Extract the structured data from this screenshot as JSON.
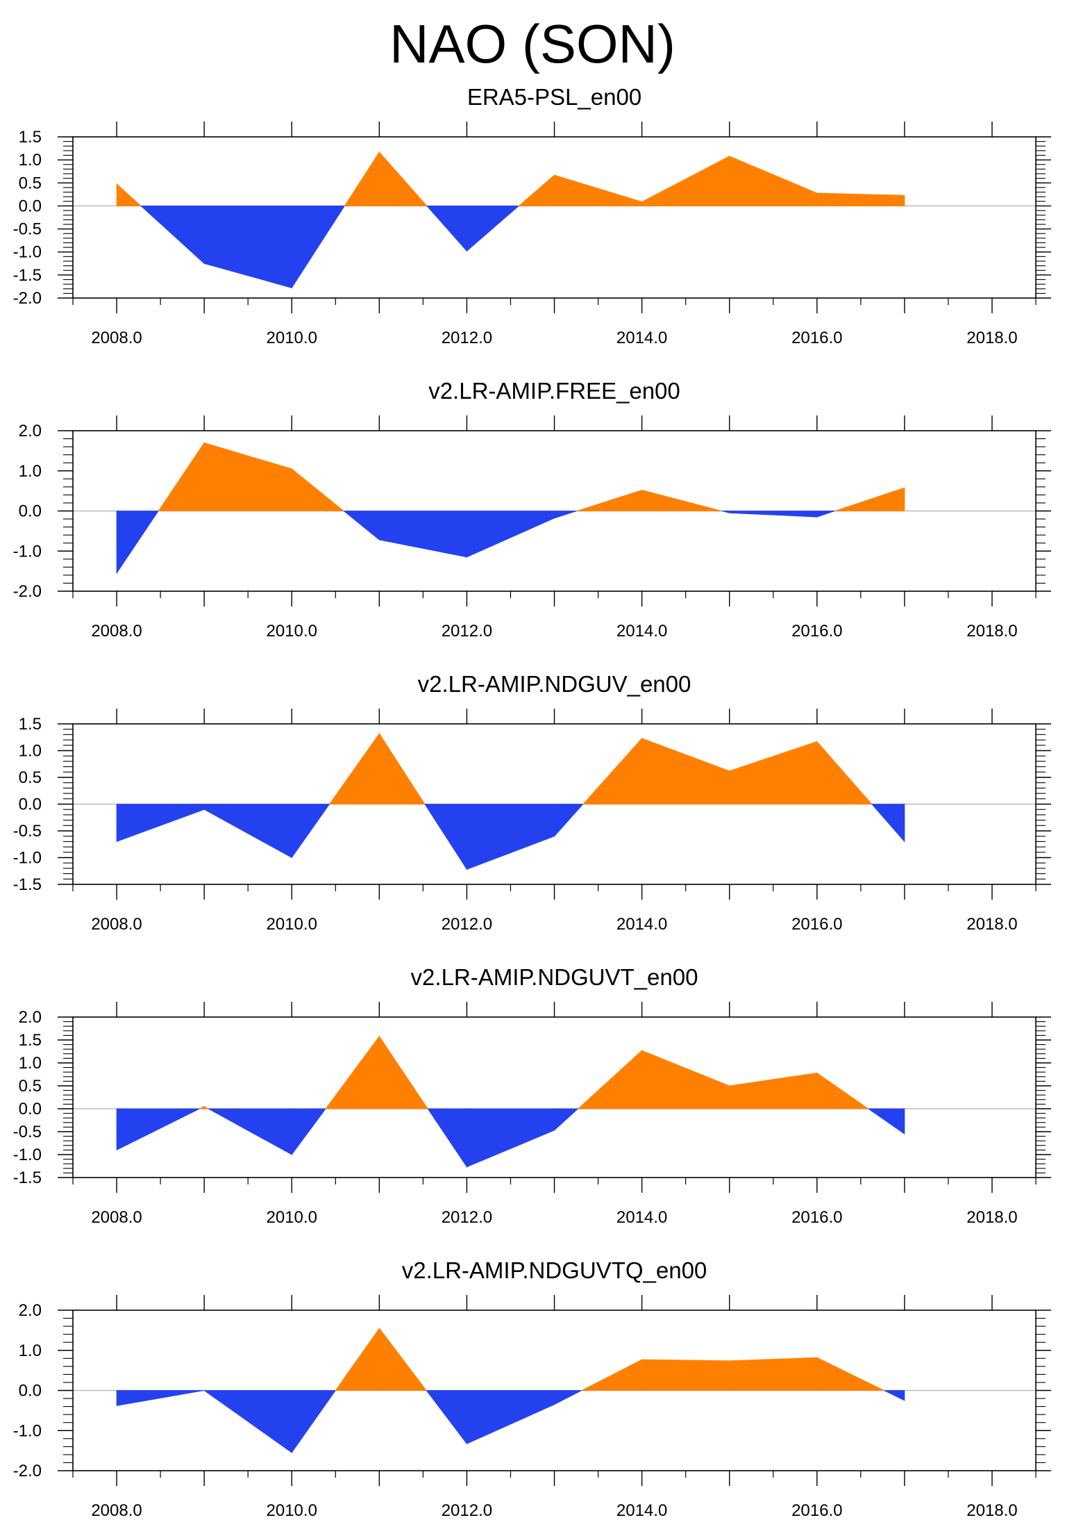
{
  "figure": {
    "title": "NAO (SON)"
  },
  "colors": {
    "positive": "#FF8000",
    "negative": "#2441F0",
    "axis": "#000000",
    "zero_line": "#BBBBBB"
  },
  "chart_data": [
    {
      "type": "area",
      "title": "ERA5-PSL_en00",
      "x": [
        2008,
        2009,
        2010,
        2011,
        2012,
        2013,
        2014,
        2015,
        2016,
        2017
      ],
      "values": [
        0.48,
        -1.25,
        -1.78,
        1.17,
        -0.98,
        0.67,
        0.09,
        1.08,
        0.28,
        0.23
      ],
      "xlim": [
        2007.5,
        2018.5
      ],
      "ylim": [
        -2.0,
        1.5
      ],
      "x_ticks": [
        2008,
        2010,
        2012,
        2014,
        2016,
        2018
      ],
      "x_tick_labels": [
        "2008.0",
        "2010.0",
        "2012.0",
        "2014.0",
        "2016.0",
        "2018.0"
      ],
      "y_ticks": [
        -2.0,
        -1.5,
        -1.0,
        -0.5,
        0.0,
        0.5,
        1.0,
        1.5
      ],
      "y_tick_labels": [
        "-2.0",
        "-1.5",
        "-1.0",
        "-0.5",
        "0.0",
        "0.5",
        "1.0",
        "1.5"
      ],
      "y_minor_step": 0.1
    },
    {
      "type": "area",
      "title": "v2.LR-AMIP.FREE_en00",
      "x": [
        2008,
        2009,
        2010,
        2011,
        2012,
        2013,
        2014,
        2015,
        2016,
        2017
      ],
      "values": [
        -1.55,
        1.7,
        1.05,
        -0.72,
        -1.15,
        -0.18,
        0.52,
        -0.05,
        -0.15,
        0.58
      ],
      "xlim": [
        2007.5,
        2018.5
      ],
      "ylim": [
        -2.0,
        2.0
      ],
      "x_ticks": [
        2008,
        2010,
        2012,
        2014,
        2016,
        2018
      ],
      "x_tick_labels": [
        "2008.0",
        "2010.0",
        "2012.0",
        "2014.0",
        "2016.0",
        "2018.0"
      ],
      "y_ticks": [
        -2.0,
        -1.0,
        0.0,
        1.0,
        2.0
      ],
      "y_tick_labels": [
        "-2.0",
        "-1.0",
        "0.0",
        "1.0",
        "2.0"
      ],
      "y_minor_step": 0.2
    },
    {
      "type": "area",
      "title": "v2.LR-AMIP.NDGUV_en00",
      "x": [
        2008,
        2009,
        2010,
        2011,
        2012,
        2013,
        2014,
        2015,
        2016,
        2017
      ],
      "values": [
        -0.7,
        -0.1,
        -1.0,
        1.32,
        -1.22,
        -0.6,
        1.23,
        0.62,
        1.17,
        -0.7
      ],
      "xlim": [
        2007.5,
        2018.5
      ],
      "ylim": [
        -1.5,
        1.5
      ],
      "x_ticks": [
        2008,
        2010,
        2012,
        2014,
        2016,
        2018
      ],
      "x_tick_labels": [
        "2008.0",
        "2010.0",
        "2012.0",
        "2014.0",
        "2016.0",
        "2018.0"
      ],
      "y_ticks": [
        -1.5,
        -1.0,
        -0.5,
        0.0,
        0.5,
        1.0,
        1.5
      ],
      "y_tick_labels": [
        "-1.5",
        "-1.0",
        "-0.5",
        "0.0",
        "0.5",
        "1.0",
        "1.5"
      ],
      "y_minor_step": 0.1
    },
    {
      "type": "area",
      "title": "v2.LR-AMIP.NDGUVT_en00",
      "x": [
        2008,
        2009,
        2010,
        2011,
        2012,
        2013,
        2014,
        2015,
        2016,
        2017
      ],
      "values": [
        -0.9,
        0.05,
        -1.0,
        1.58,
        -1.27,
        -0.47,
        1.27,
        0.5,
        0.78,
        -0.55
      ],
      "xlim": [
        2007.5,
        2018.5
      ],
      "ylim": [
        -1.5,
        2.0
      ],
      "x_ticks": [
        2008,
        2010,
        2012,
        2014,
        2016,
        2018
      ],
      "x_tick_labels": [
        "2008.0",
        "2010.0",
        "2012.0",
        "2014.0",
        "2016.0",
        "2018.0"
      ],
      "y_ticks": [
        -1.5,
        -1.0,
        -0.5,
        0.0,
        0.5,
        1.0,
        1.5,
        2.0
      ],
      "y_tick_labels": [
        "-1.5",
        "-1.0",
        "-0.5",
        "0.0",
        "0.5",
        "1.0",
        "1.5",
        "2.0"
      ],
      "y_minor_step": 0.1
    },
    {
      "type": "area",
      "title": "v2.LR-AMIP.NDGUVTQ_en00",
      "x": [
        2008,
        2009,
        2010,
        2011,
        2012,
        2013,
        2014,
        2015,
        2016,
        2017
      ],
      "values": [
        -0.38,
        0.0,
        -1.55,
        1.55,
        -1.33,
        -0.35,
        0.77,
        0.74,
        0.82,
        -0.25
      ],
      "xlim": [
        2007.5,
        2018.5
      ],
      "ylim": [
        -2.0,
        2.0
      ],
      "x_ticks": [
        2008,
        2010,
        2012,
        2014,
        2016,
        2018
      ],
      "x_tick_labels": [
        "2008.0",
        "2010.0",
        "2012.0",
        "2014.0",
        "2016.0",
        "2018.0"
      ],
      "y_ticks": [
        -2.0,
        -1.0,
        0.0,
        1.0,
        2.0
      ],
      "y_tick_labels": [
        "-2.0",
        "-1.0",
        "0.0",
        "1.0",
        "2.0"
      ],
      "y_minor_step": 0.2
    }
  ]
}
